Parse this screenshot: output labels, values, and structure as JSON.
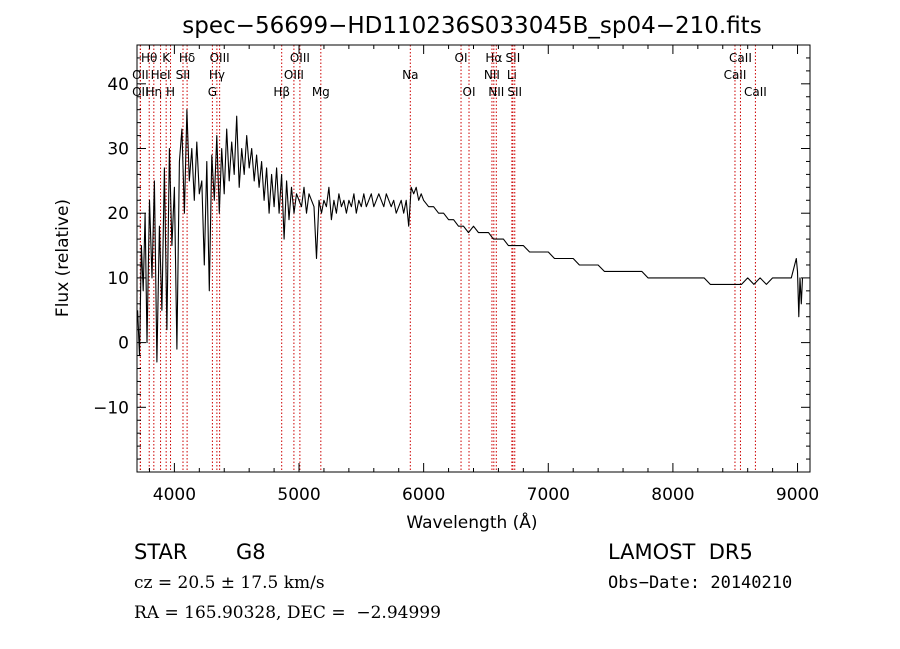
{
  "chart_data": {
    "type": "line",
    "title": "spec−56699−HD110236S033045B_sp04−210.fits",
    "xlabel": "Wavelength (Å)",
    "ylabel": "Flux (relative)",
    "xlim": [
      3700,
      9100
    ],
    "ylim": [
      -20,
      46
    ],
    "xticks": [
      4000,
      5000,
      6000,
      7000,
      8000,
      9000
    ],
    "xtick_labels": [
      "4000",
      "5000",
      "6000",
      "7000",
      "8000",
      "9000"
    ],
    "yticks": [
      -10,
      0,
      10,
      20,
      30,
      40
    ],
    "ytick_labels": [
      "−10",
      "0",
      "10",
      "20",
      "30",
      "40"
    ],
    "grid": false,
    "series": [
      {
        "color": "#000000",
        "x": [
          3705,
          3720,
          3735,
          3750,
          3765,
          3780,
          3800,
          3820,
          3840,
          3860,
          3880,
          3900,
          3920,
          3940,
          3960,
          3980,
          4000,
          4020,
          4040,
          4060,
          4080,
          4100,
          4120,
          4140,
          4160,
          4180,
          4200,
          4220,
          4240,
          4260,
          4280,
          4300,
          4320,
          4340,
          4360,
          4380,
          4400,
          4420,
          4440,
          4460,
          4480,
          4500,
          4520,
          4540,
          4560,
          4580,
          4600,
          4620,
          4640,
          4660,
          4680,
          4700,
          4720,
          4740,
          4760,
          4780,
          4800,
          4820,
          4840,
          4860,
          4880,
          4900,
          4920,
          4940,
          4960,
          4980,
          5000,
          5020,
          5040,
          5060,
          5080,
          5100,
          5120,
          5140,
          5160,
          5180,
          5200,
          5220,
          5240,
          5260,
          5280,
          5300,
          5320,
          5340,
          5360,
          5380,
          5400,
          5420,
          5440,
          5460,
          5480,
          5500,
          5520,
          5540,
          5560,
          5580,
          5600,
          5620,
          5640,
          5660,
          5680,
          5700,
          5720,
          5740,
          5760,
          5780,
          5800,
          5820,
          5840,
          5860,
          5880,
          5900,
          5920,
          5940,
          5960,
          5980,
          6000,
          6040,
          6080,
          6120,
          6160,
          6200,
          6240,
          6280,
          6320,
          6360,
          6400,
          6440,
          6480,
          6520,
          6560,
          6600,
          6640,
          6680,
          6720,
          6760,
          6800,
          6850,
          6900,
          6950,
          7000,
          7050,
          7100,
          7150,
          7200,
          7250,
          7300,
          7350,
          7400,
          7450,
          7500,
          7550,
          7600,
          7650,
          7700,
          7750,
          7800,
          7850,
          7900,
          7950,
          8000,
          8050,
          8100,
          8150,
          8200,
          8250,
          8300,
          8350,
          8400,
          8450,
          8500,
          8550,
          8600,
          8650,
          8700,
          8750,
          8800,
          8850,
          8900,
          8950,
          8990,
          9000,
          9010,
          9020,
          9030,
          9040
        ],
        "y": [
          5,
          -2,
          15,
          8,
          20,
          0,
          22,
          10,
          25,
          -3,
          18,
          5,
          27,
          2,
          30,
          15,
          24,
          -1,
          28,
          33,
          20,
          36,
          25,
          30,
          22,
          31,
          23,
          25,
          12,
          28,
          8,
          29,
          22,
          32,
          20,
          30,
          23,
          33,
          25,
          31,
          26,
          35,
          24,
          30,
          26,
          32,
          27,
          30,
          25,
          29,
          24,
          28,
          22,
          27,
          20,
          26,
          21,
          27,
          20,
          26,
          16,
          25,
          19,
          24,
          20,
          23,
          22,
          21,
          24,
          20,
          23,
          22,
          21,
          13,
          22,
          20,
          22,
          21,
          24,
          19,
          22,
          20,
          23,
          21,
          22,
          20,
          22,
          21,
          23,
          20,
          22,
          21,
          23,
          21,
          22,
          23,
          21,
          22,
          23,
          22,
          21,
          23,
          22,
          21,
          22,
          20,
          21,
          22,
          20,
          22,
          18,
          24,
          23,
          24,
          22,
          23,
          22,
          21,
          21,
          20,
          20,
          19,
          19,
          18,
          18,
          17,
          18,
          17,
          17,
          17,
          16,
          16,
          16,
          15,
          15,
          15,
          15,
          14,
          14,
          14,
          14,
          13,
          13,
          13,
          13,
          12,
          12,
          12,
          12,
          11,
          11,
          11,
          11,
          11,
          11,
          11,
          10,
          10,
          10,
          10,
          10,
          10,
          10,
          10,
          10,
          10,
          9,
          9,
          9,
          9,
          9,
          9,
          10,
          9,
          10,
          9,
          10,
          10,
          10,
          10,
          13,
          11,
          4,
          10,
          6,
          10
        ]
      }
    ],
    "line_annotations": [
      {
        "label": "Hθ",
        "x": 3798,
        "row": 1
      },
      {
        "label": "OII",
        "x": 3727,
        "row": 2
      },
      {
        "label": "OII",
        "x": 3727,
        "row": 3
      },
      {
        "label": "Hη",
        "x": 3835,
        "row": 3
      },
      {
        "label": "K",
        "x": 3934,
        "row": 1
      },
      {
        "label": "HeI",
        "x": 3889,
        "row": 2
      },
      {
        "label": "H",
        "x": 3969,
        "row": 3
      },
      {
        "label": "Hδ",
        "x": 4102,
        "row": 1
      },
      {
        "label": "SII",
        "x": 4069,
        "row": 2
      },
      {
        "label": "OIII",
        "x": 4363,
        "row": 1
      },
      {
        "label": "Hγ",
        "x": 4341,
        "row": 2
      },
      {
        "label": "G",
        "x": 4305,
        "row": 3
      },
      {
        "label": "OIII",
        "x": 5007,
        "row": 1
      },
      {
        "label": "OIII",
        "x": 4959,
        "row": 2
      },
      {
        "label": "Hβ",
        "x": 4861,
        "row": 3
      },
      {
        "label": "Mg",
        "x": 5175,
        "row": 3
      },
      {
        "label": "Na",
        "x": 5893,
        "row": 2
      },
      {
        "label": "OI",
        "x": 6300,
        "row": 1
      },
      {
        "label": "OI",
        "x": 6364,
        "row": 3
      },
      {
        "label": "Hα",
        "x": 6563,
        "row": 1
      },
      {
        "label": "NII",
        "x": 6548,
        "row": 2
      },
      {
        "label": "NII",
        "x": 6583,
        "row": 3
      },
      {
        "label": "SII",
        "x": 6716,
        "row": 1
      },
      {
        "label": "Li",
        "x": 6708,
        "row": 2
      },
      {
        "label": "SII",
        "x": 6731,
        "row": 3
      },
      {
        "label": "CaII",
        "x": 8542,
        "row": 1
      },
      {
        "label": "CaII",
        "x": 8498,
        "row": 2
      },
      {
        "label": "CaII",
        "x": 8662,
        "row": 3
      }
    ]
  },
  "info": {
    "class_label": "STAR",
    "subclass": "G8",
    "cz": "cz = 20.5 ± 17.5 km/s",
    "coords": "RA = 165.90328, DEC =  −2.94999",
    "survey": "LAMOST  DR5",
    "obs_date": "Obs−Date: 20140210"
  }
}
